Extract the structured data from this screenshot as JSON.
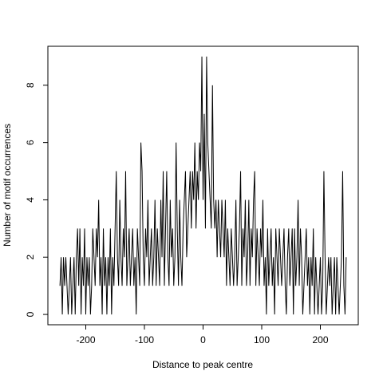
{
  "chart_data": {
    "type": "line",
    "xlabel": "Distance to peak centre",
    "ylabel": "Number of motif occurrences",
    "x": [
      -244,
      -242,
      -240,
      -238,
      -236,
      -234,
      -232,
      -230,
      -228,
      -226,
      -224,
      -222,
      -220,
      -218,
      -216,
      -214,
      -212,
      -210,
      -208,
      -206,
      -204,
      -202,
      -200,
      -198,
      -196,
      -194,
      -192,
      -190,
      -188,
      -186,
      -184,
      -182,
      -180,
      -178,
      -176,
      -174,
      -172,
      -170,
      -168,
      -166,
      -164,
      -162,
      -160,
      -158,
      -156,
      -154,
      -152,
      -150,
      -148,
      -146,
      -144,
      -142,
      -140,
      -138,
      -136,
      -134,
      -132,
      -130,
      -128,
      -126,
      -124,
      -122,
      -120,
      -118,
      -116,
      -114,
      -112,
      -110,
      -108,
      -106,
      -104,
      -102,
      -100,
      -98,
      -96,
      -94,
      -92,
      -90,
      -88,
      -86,
      -84,
      -82,
      -80,
      -78,
      -76,
      -74,
      -72,
      -70,
      -68,
      -66,
      -64,
      -62,
      -60,
      -58,
      -56,
      -54,
      -52,
      -50,
      -48,
      -46,
      -44,
      -42,
      -40,
      -38,
      -36,
      -34,
      -32,
      -30,
      -28,
      -26,
      -24,
      -22,
      -20,
      -18,
      -16,
      -14,
      -12,
      -10,
      -8,
      -6,
      -4,
      -2,
      0,
      2,
      4,
      6,
      8,
      10,
      12,
      14,
      16,
      18,
      20,
      22,
      24,
      26,
      28,
      30,
      32,
      34,
      36,
      38,
      40,
      42,
      44,
      46,
      48,
      50,
      52,
      54,
      56,
      58,
      60,
      62,
      64,
      66,
      68,
      70,
      72,
      74,
      76,
      78,
      80,
      82,
      84,
      86,
      88,
      90,
      92,
      94,
      96,
      98,
      100,
      102,
      104,
      106,
      108,
      110,
      112,
      114,
      116,
      118,
      120,
      122,
      124,
      126,
      128,
      130,
      132,
      134,
      136,
      138,
      140,
      142,
      144,
      146,
      148,
      150,
      152,
      154,
      156,
      158,
      160,
      162,
      164,
      166,
      168,
      170,
      172,
      174,
      176,
      178,
      180,
      182,
      184,
      186,
      188,
      190,
      192,
      194,
      196,
      198,
      200,
      202,
      204,
      206,
      208,
      210,
      212,
      214,
      216,
      218,
      220,
      222,
      224,
      226,
      228,
      230,
      232,
      234,
      236,
      238,
      240,
      242,
      244
    ],
    "values": [
      1,
      2,
      0,
      2,
      1,
      2,
      1,
      0,
      1,
      2,
      0,
      1,
      2,
      0,
      2,
      3,
      1,
      3,
      0,
      2,
      1,
      3,
      0,
      2,
      1,
      2,
      0,
      1,
      3,
      2,
      1,
      3,
      2,
      4,
      1,
      2,
      0,
      3,
      1,
      2,
      0,
      2,
      1,
      3,
      0,
      2,
      1,
      3,
      5,
      2,
      1,
      4,
      2,
      1,
      3,
      2,
      5,
      1,
      2,
      3,
      1,
      2,
      3,
      1,
      2,
      0,
      3,
      2,
      1,
      6,
      5,
      2,
      1,
      3,
      2,
      4,
      1,
      2,
      3,
      1,
      2,
      4,
      1,
      3,
      2,
      1,
      4,
      2,
      5,
      1,
      3,
      5,
      2,
      1,
      4,
      2,
      3,
      1,
      2,
      6,
      3,
      1,
      4,
      2,
      1,
      3,
      4,
      5,
      2,
      3,
      4,
      5,
      3,
      5,
      4,
      6,
      3,
      5,
      4,
      6,
      5,
      9,
      4,
      7,
      3,
      9,
      6,
      5,
      4,
      3,
      8,
      4,
      3,
      4,
      2,
      4,
      3,
      2,
      4,
      3,
      2,
      4,
      1,
      3,
      2,
      1,
      3,
      2,
      1,
      2,
      4,
      1,
      2,
      3,
      5,
      1,
      3,
      2,
      4,
      1,
      2,
      4,
      1,
      3,
      2,
      4,
      5,
      1,
      3,
      2,
      1,
      3,
      2,
      4,
      1,
      2,
      0,
      3,
      1,
      2,
      3,
      1,
      2,
      0,
      3,
      2,
      1,
      3,
      2,
      1,
      2,
      3,
      1,
      0,
      2,
      3,
      1,
      2,
      3,
      0,
      3,
      1,
      2,
      4,
      1,
      3,
      2,
      0,
      1,
      2,
      3,
      1,
      2,
      0,
      2,
      1,
      3,
      0,
      2,
      1,
      0,
      1,
      2,
      0,
      1,
      5,
      2,
      0,
      1,
      2,
      1,
      2,
      0,
      1,
      2,
      0,
      2,
      1,
      0,
      1,
      2,
      5,
      1,
      0,
      2
    ],
    "color": "#000000",
    "xlim": [
      -264.6,
      264.6
    ],
    "xticks": [
      -200,
      -100,
      0,
      100,
      200
    ],
    "ylim": [
      -0.36,
      9.36
    ],
    "yticks": [
      0,
      2,
      4,
      6,
      8
    ],
    "grid": false
  }
}
